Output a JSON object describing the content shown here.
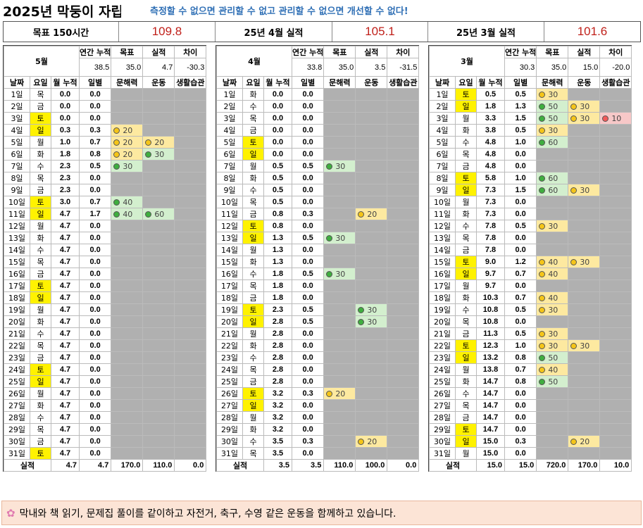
{
  "title": "2025년 막둥이 자립",
  "slogan": "측정할 수 없으면 관리할 수 없고 관리할 수 없으면 개선할 수 없다!",
  "summary": {
    "goal_label": "목표 150시간",
    "goal_value": "109.8",
    "april_label": "25년 4월 실적",
    "april_value": "105.1",
    "march_label": "25년 3월 실적",
    "march_value": "101.6"
  },
  "headers": {
    "annual_cum": "연간 누적",
    "target": "목표",
    "actual": "실적",
    "diff": "차이",
    "date": "날짜",
    "weekday": "요일",
    "month_cum": "월 누적",
    "daily": "일별",
    "literacy": "문해력",
    "exercise": "운동",
    "habits": "생활습관",
    "total_label": "실적"
  },
  "months": [
    {
      "name": "5월",
      "annual_cum": "38.5",
      "target": "35.0",
      "actual": "4.7",
      "diff": "-30.3",
      "totals": {
        "cum": "4.7",
        "daily": "4.7",
        "literacy": "170.0",
        "exercise": "110.0",
        "habits": "0.0"
      },
      "rows": [
        [
          "1일",
          "목",
          "0.0",
          "0.0",
          "",
          "",
          "",
          ""
        ],
        [
          "2일",
          "금",
          "0.0",
          "0.0",
          "",
          "",
          "",
          ""
        ],
        [
          "3일",
          "토",
          "0.0",
          "0.0",
          "",
          "",
          "",
          ""
        ],
        [
          "4일",
          "일",
          "0.3",
          "0.3",
          "y20",
          "",
          "",
          ""
        ],
        [
          "5일",
          "월",
          "1.0",
          "0.7",
          "y20",
          "y20",
          "",
          ""
        ],
        [
          "6일",
          "화",
          "1.8",
          "0.8",
          "y20",
          "g30",
          "",
          ""
        ],
        [
          "7일",
          "수",
          "2.3",
          "0.5",
          "g30",
          "",
          "",
          ""
        ],
        [
          "8일",
          "목",
          "2.3",
          "0.0",
          "",
          "",
          "",
          ""
        ],
        [
          "9일",
          "금",
          "2.3",
          "0.0",
          "",
          "",
          "",
          ""
        ],
        [
          "10일",
          "토",
          "3.0",
          "0.7",
          "g40",
          "",
          "",
          ""
        ],
        [
          "11일",
          "일",
          "4.7",
          "1.7",
          "g40",
          "g60",
          "",
          ""
        ],
        [
          "12일",
          "월",
          "4.7",
          "0.0",
          "",
          "",
          "",
          ""
        ],
        [
          "13일",
          "화",
          "4.7",
          "0.0",
          "",
          "",
          "",
          ""
        ],
        [
          "14일",
          "수",
          "4.7",
          "0.0",
          "",
          "",
          "",
          ""
        ],
        [
          "15일",
          "목",
          "4.7",
          "0.0",
          "",
          "",
          "",
          ""
        ],
        [
          "16일",
          "금",
          "4.7",
          "0.0",
          "",
          "",
          "",
          ""
        ],
        [
          "17일",
          "토",
          "4.7",
          "0.0",
          "",
          "",
          "",
          ""
        ],
        [
          "18일",
          "일",
          "4.7",
          "0.0",
          "",
          "",
          "",
          ""
        ],
        [
          "19일",
          "월",
          "4.7",
          "0.0",
          "",
          "",
          "",
          ""
        ],
        [
          "20일",
          "화",
          "4.7",
          "0.0",
          "",
          "",
          "",
          ""
        ],
        [
          "21일",
          "수",
          "4.7",
          "0.0",
          "",
          "",
          "",
          ""
        ],
        [
          "22일",
          "목",
          "4.7",
          "0.0",
          "",
          "",
          "",
          ""
        ],
        [
          "23일",
          "금",
          "4.7",
          "0.0",
          "",
          "",
          "",
          ""
        ],
        [
          "24일",
          "토",
          "4.7",
          "0.0",
          "",
          "",
          "",
          ""
        ],
        [
          "25일",
          "일",
          "4.7",
          "0.0",
          "",
          "",
          "",
          ""
        ],
        [
          "26일",
          "월",
          "4.7",
          "0.0",
          "",
          "",
          "",
          ""
        ],
        [
          "27일",
          "화",
          "4.7",
          "0.0",
          "",
          "",
          "",
          ""
        ],
        [
          "28일",
          "수",
          "4.7",
          "0.0",
          "",
          "",
          "",
          ""
        ],
        [
          "29일",
          "목",
          "4.7",
          "0.0",
          "",
          "",
          "",
          ""
        ],
        [
          "30일",
          "금",
          "4.7",
          "0.0",
          "",
          "",
          "",
          ""
        ],
        [
          "31일",
          "토",
          "4.7",
          "0.0",
          "",
          "",
          "",
          ""
        ]
      ]
    },
    {
      "name": "4월",
      "annual_cum": "33.8",
      "target": "35.0",
      "actual": "3.5",
      "diff": "-31.5",
      "totals": {
        "cum": "3.5",
        "daily": "3.5",
        "literacy": "110.0",
        "exercise": "100.0",
        "habits": "0.0"
      },
      "rows": [
        [
          "1일",
          "화",
          "0.0",
          "0.0",
          "",
          "",
          "",
          ""
        ],
        [
          "2일",
          "수",
          "0.0",
          "0.0",
          "",
          "",
          "",
          ""
        ],
        [
          "3일",
          "목",
          "0.0",
          "0.0",
          "",
          "",
          "",
          ""
        ],
        [
          "4일",
          "금",
          "0.0",
          "0.0",
          "",
          "",
          "",
          ""
        ],
        [
          "5일",
          "토",
          "0.0",
          "0.0",
          "",
          "",
          "",
          ""
        ],
        [
          "6일",
          "일",
          "0.0",
          "0.0",
          "",
          "",
          "",
          ""
        ],
        [
          "7일",
          "월",
          "0.5",
          "0.5",
          "g30",
          "",
          "",
          ""
        ],
        [
          "8일",
          "화",
          "0.5",
          "0.0",
          "",
          "",
          "",
          ""
        ],
        [
          "9일",
          "수",
          "0.5",
          "0.0",
          "",
          "",
          "",
          ""
        ],
        [
          "10일",
          "목",
          "0.5",
          "0.0",
          "",
          "",
          "",
          ""
        ],
        [
          "11일",
          "금",
          "0.8",
          "0.3",
          "",
          "y20",
          "",
          ""
        ],
        [
          "12일",
          "토",
          "0.8",
          "0.0",
          "",
          "",
          "",
          ""
        ],
        [
          "13일",
          "일",
          "1.3",
          "0.5",
          "g30",
          "",
          "",
          ""
        ],
        [
          "14일",
          "월",
          "1.3",
          "0.0",
          "",
          "",
          "",
          ""
        ],
        [
          "15일",
          "화",
          "1.3",
          "0.0",
          "",
          "",
          "",
          ""
        ],
        [
          "16일",
          "수",
          "1.8",
          "0.5",
          "g30",
          "",
          "",
          ""
        ],
        [
          "17일",
          "목",
          "1.8",
          "0.0",
          "",
          "",
          "",
          ""
        ],
        [
          "18일",
          "금",
          "1.8",
          "0.0",
          "",
          "",
          "",
          ""
        ],
        [
          "19일",
          "토",
          "2.3",
          "0.5",
          "",
          "g30",
          "",
          ""
        ],
        [
          "20일",
          "일",
          "2.8",
          "0.5",
          "",
          "g30",
          "",
          ""
        ],
        [
          "21일",
          "월",
          "2.8",
          "0.0",
          "",
          "",
          "",
          ""
        ],
        [
          "22일",
          "화",
          "2.8",
          "0.0",
          "",
          "",
          "",
          ""
        ],
        [
          "23일",
          "수",
          "2.8",
          "0.0",
          "",
          "",
          "",
          ""
        ],
        [
          "24일",
          "목",
          "2.8",
          "0.0",
          "",
          "",
          "",
          ""
        ],
        [
          "25일",
          "금",
          "2.8",
          "0.0",
          "",
          "",
          "",
          ""
        ],
        [
          "26일",
          "토",
          "3.2",
          "0.3",
          "y20",
          "",
          "",
          ""
        ],
        [
          "27일",
          "일",
          "3.2",
          "0.0",
          "",
          "",
          "",
          ""
        ],
        [
          "28일",
          "월",
          "3.2",
          "0.0",
          "",
          "",
          "",
          ""
        ],
        [
          "29일",
          "화",
          "3.2",
          "0.0",
          "",
          "",
          "",
          ""
        ],
        [
          "30일",
          "수",
          "3.5",
          "0.3",
          "",
          "y20",
          "",
          ""
        ],
        [
          "31일",
          "목",
          "3.5",
          "0.0",
          "",
          "",
          "",
          ""
        ]
      ]
    },
    {
      "name": "3월",
      "annual_cum": "30.3",
      "target": "35.0",
      "actual": "15.0",
      "diff": "-20.0",
      "totals": {
        "cum": "15.0",
        "daily": "15.0",
        "literacy": "720.0",
        "exercise": "170.0",
        "habits": "10.0"
      },
      "rows": [
        [
          "1일",
          "토",
          "0.5",
          "0.5",
          "y30",
          "",
          "",
          ""
        ],
        [
          "2일",
          "일",
          "1.8",
          "1.3",
          "g50",
          "y30",
          "",
          ""
        ],
        [
          "3일",
          "월",
          "3.3",
          "1.5",
          "g50",
          "y30",
          "r10",
          ""
        ],
        [
          "4일",
          "화",
          "3.8",
          "0.5",
          "y30",
          "",
          "",
          ""
        ],
        [
          "5일",
          "수",
          "4.8",
          "1.0",
          "g60",
          "",
          "",
          ""
        ],
        [
          "6일",
          "목",
          "4.8",
          "0.0",
          "",
          "",
          "",
          ""
        ],
        [
          "7일",
          "금",
          "4.8",
          "0.0",
          "",
          "",
          "",
          ""
        ],
        [
          "8일",
          "토",
          "5.8",
          "1.0",
          "g60",
          "",
          "",
          ""
        ],
        [
          "9일",
          "일",
          "7.3",
          "1.5",
          "g60",
          "y30",
          "",
          ""
        ],
        [
          "10일",
          "월",
          "7.3",
          "0.0",
          "",
          "",
          "",
          ""
        ],
        [
          "11일",
          "화",
          "7.3",
          "0.0",
          "",
          "",
          "",
          ""
        ],
        [
          "12일",
          "수",
          "7.8",
          "0.5",
          "y30",
          "",
          "",
          ""
        ],
        [
          "13일",
          "목",
          "7.8",
          "0.0",
          "",
          "",
          "",
          ""
        ],
        [
          "14일",
          "금",
          "7.8",
          "0.0",
          "",
          "",
          "",
          ""
        ],
        [
          "15일",
          "토",
          "9.0",
          "1.2",
          "y40",
          "y30",
          "",
          ""
        ],
        [
          "16일",
          "일",
          "9.7",
          "0.7",
          "y40",
          "",
          "",
          ""
        ],
        [
          "17일",
          "월",
          "9.7",
          "0.0",
          "",
          "",
          "",
          ""
        ],
        [
          "18일",
          "화",
          "10.3",
          "0.7",
          "y40",
          "",
          "",
          ""
        ],
        [
          "19일",
          "수",
          "10.8",
          "0.5",
          "y30",
          "",
          "",
          ""
        ],
        [
          "20일",
          "목",
          "10.8",
          "0.0",
          "",
          "",
          "",
          ""
        ],
        [
          "21일",
          "금",
          "11.3",
          "0.5",
          "y30",
          "",
          "",
          ""
        ],
        [
          "22일",
          "토",
          "12.3",
          "1.0",
          "y30",
          "y30",
          "",
          ""
        ],
        [
          "23일",
          "일",
          "13.2",
          "0.8",
          "g50",
          "",
          "",
          ""
        ],
        [
          "24일",
          "월",
          "13.8",
          "0.7",
          "y40",
          "",
          "",
          ""
        ],
        [
          "25일",
          "화",
          "14.7",
          "0.8",
          "g50",
          "",
          "",
          ""
        ],
        [
          "26일",
          "수",
          "14.7",
          "0.0",
          "",
          "",
          "",
          ""
        ],
        [
          "27일",
          "목",
          "14.7",
          "0.0",
          "",
          "",
          "",
          ""
        ],
        [
          "28일",
          "금",
          "14.7",
          "0.0",
          "",
          "",
          "",
          ""
        ],
        [
          "29일",
          "토",
          "14.7",
          "0.0",
          "",
          "",
          "",
          ""
        ],
        [
          "30일",
          "일",
          "15.0",
          "0.3",
          "",
          "y20",
          "",
          ""
        ],
        [
          "31일",
          "월",
          "15.0",
          "0.0",
          "",
          "",
          "",
          ""
        ]
      ]
    }
  ],
  "footer": {
    "icon": "flower-icon",
    "text": "막내와 책 읽기, 문제집 풀이를 같이하고 자전거, 축구, 수영 같은 운동을 함께하고 있습니다."
  },
  "colors": {
    "slogan": "#2f6fb5",
    "value_red": "#c0201a",
    "weekend": "#fff200",
    "yellow_cell": "#fde9a0",
    "green_cell": "#d3efce",
    "red_cell": "#f7c8c8",
    "empty_cell": "#b0b0b0",
    "footer_bg": "#fce4d6"
  }
}
